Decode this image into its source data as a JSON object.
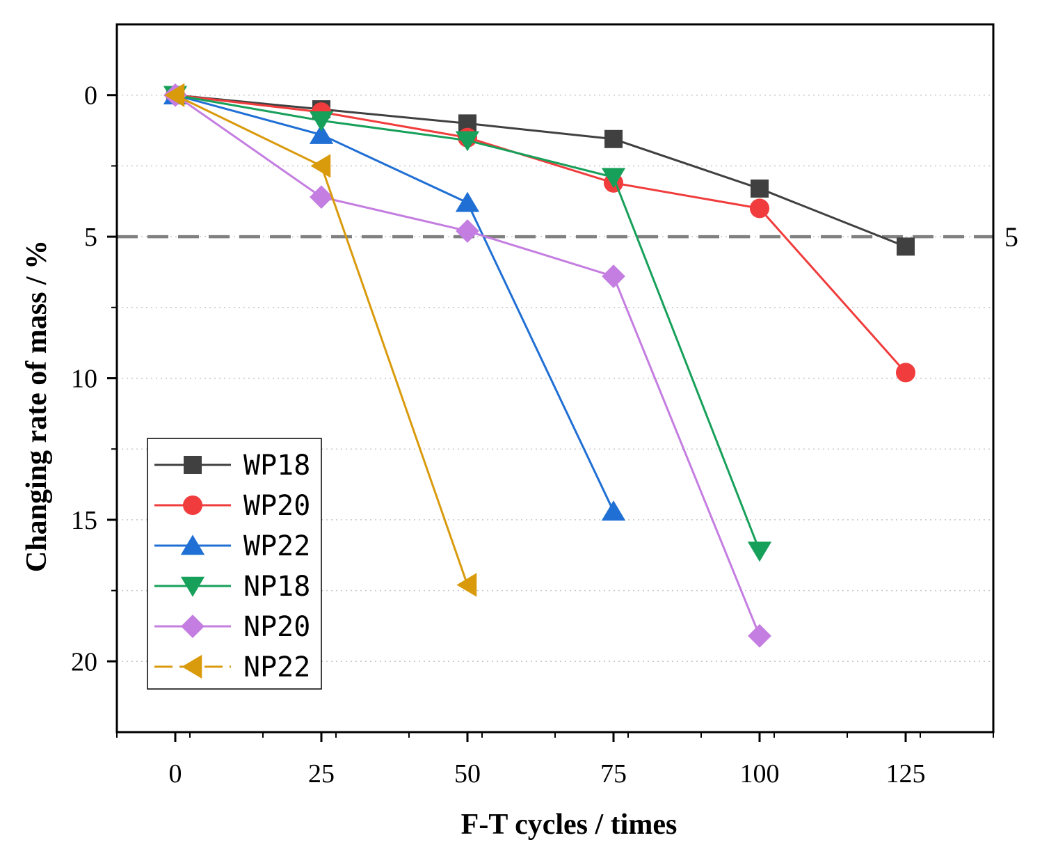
{
  "chart_data": {
    "type": "line",
    "title": "",
    "xlabel": "F-T cycles / times",
    "ylabel": "Changing rate of mass / %",
    "xlim": [
      -10,
      140
    ],
    "ylim": [
      -2.5,
      22.5
    ],
    "y_inverted": true,
    "xticks": [
      0,
      25,
      50,
      75,
      100,
      125
    ],
    "yticks": [
      0,
      5,
      10,
      15,
      20
    ],
    "minor_grid_y": [
      2.5,
      7.5,
      12.5,
      17.5
    ],
    "grid": true,
    "legend_position": "bottom-left",
    "reference_line": {
      "value": 5,
      "label": "5",
      "color": "#808080",
      "style": "dashed"
    },
    "series": [
      {
        "name": "WP18",
        "color": "#404040",
        "marker": "square",
        "dashed": false,
        "x": [
          0,
          25,
          50,
          75,
          100,
          125
        ],
        "values": [
          0,
          0.5,
          1.0,
          1.55,
          3.3,
          5.35
        ]
      },
      {
        "name": "WP20",
        "color": "#f03c3c",
        "marker": "circle",
        "dashed": false,
        "x": [
          0,
          25,
          50,
          75,
          100,
          125
        ],
        "values": [
          0,
          0.6,
          1.5,
          3.1,
          4.0,
          9.8
        ]
      },
      {
        "name": "WP22",
        "color": "#1f6fd4",
        "marker": "triangle-up",
        "dashed": false,
        "x": [
          0,
          25,
          50,
          75
        ],
        "values": [
          0,
          1.4,
          3.8,
          14.7
        ]
      },
      {
        "name": "NP18",
        "color": "#17a05a",
        "marker": "triangle-down",
        "dashed": false,
        "x": [
          0,
          25,
          50,
          75,
          100
        ],
        "values": [
          0,
          0.9,
          1.6,
          2.9,
          16.1
        ]
      },
      {
        "name": "NP20",
        "color": "#c47de0",
        "marker": "diamond",
        "dashed": false,
        "x": [
          0,
          25,
          50,
          75,
          100
        ],
        "values": [
          0,
          3.6,
          4.8,
          6.4,
          19.1
        ]
      },
      {
        "name": "NP22",
        "color": "#d99a0c",
        "marker": "triangle-left",
        "dashed": true,
        "x": [
          0,
          25,
          50
        ],
        "values": [
          0,
          2.5,
          17.3
        ]
      }
    ]
  }
}
